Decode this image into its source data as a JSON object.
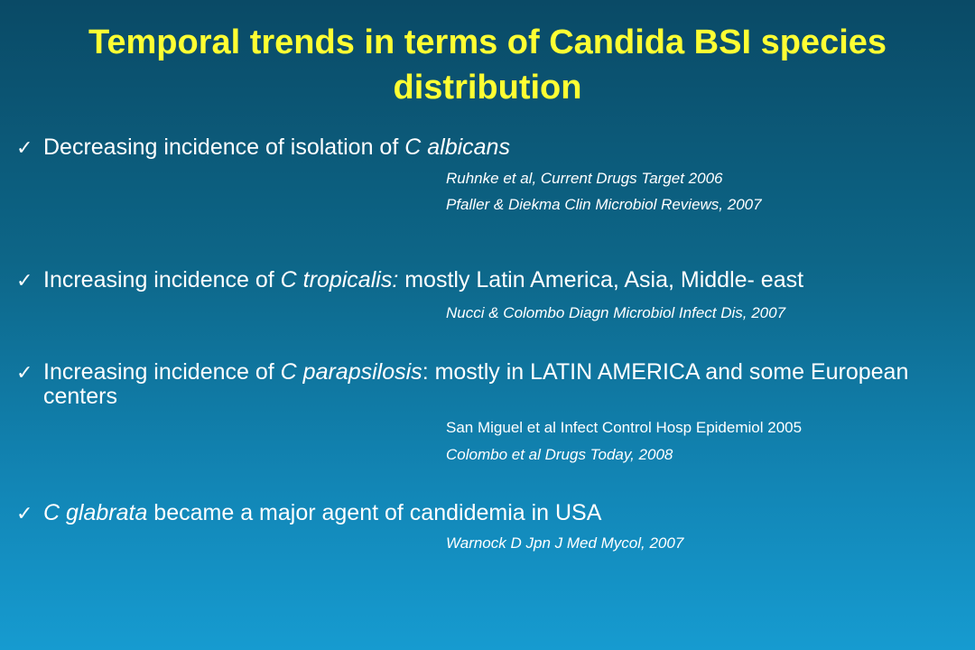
{
  "title": "Temporal trends in terms of Candida BSI species distribution",
  "bullets": [
    {
      "check": "✓",
      "parts": [
        {
          "text": "Decreasing incidence of isolation of ",
          "italic": false
        },
        {
          "text": "C albicans",
          "italic": true
        }
      ],
      "refs": [
        {
          "text": "Ruhnke et al, Current Drugs Target 2006",
          "italic": true
        },
        {
          "text": "Pfaller & Diekma Clin Microbiol Reviews, 2007",
          "italic": true
        }
      ]
    },
    {
      "check": "✓",
      "parts": [
        {
          "text": "Increasing incidence of ",
          "italic": false
        },
        {
          "text": "C tropicalis:",
          "italic": true
        },
        {
          "text": " mostly Latin America, Asia, Middle- east",
          "italic": false
        }
      ],
      "refs": [
        {
          "text": "Nucci & Colombo Diagn Microbiol Infect Dis, 2007",
          "italic": true
        }
      ]
    },
    {
      "check": "✓",
      "parts": [
        {
          "text": "Increasing incidence of ",
          "italic": false
        },
        {
          "text": "C parapsilosis",
          "italic": true
        },
        {
          "text": ": mostly in LATIN AMERICA and some European centers",
          "italic": false
        }
      ],
      "refs": [
        {
          "text": "San Miguel et al Infect Control Hosp Epidemiol 2005",
          "italic": false
        },
        {
          "text": "Colombo et al Drugs Today, 2008",
          "italic": true
        }
      ]
    },
    {
      "check": "✓",
      "parts": [
        {
          "text": "C glabrata",
          "italic": true
        },
        {
          "text": " became a major agent of candidemia in USA",
          "italic": false
        }
      ],
      "refs": [
        {
          "text": "Warnock D Jpn J Med Mycol, 2007",
          "italic": true
        }
      ]
    }
  ]
}
